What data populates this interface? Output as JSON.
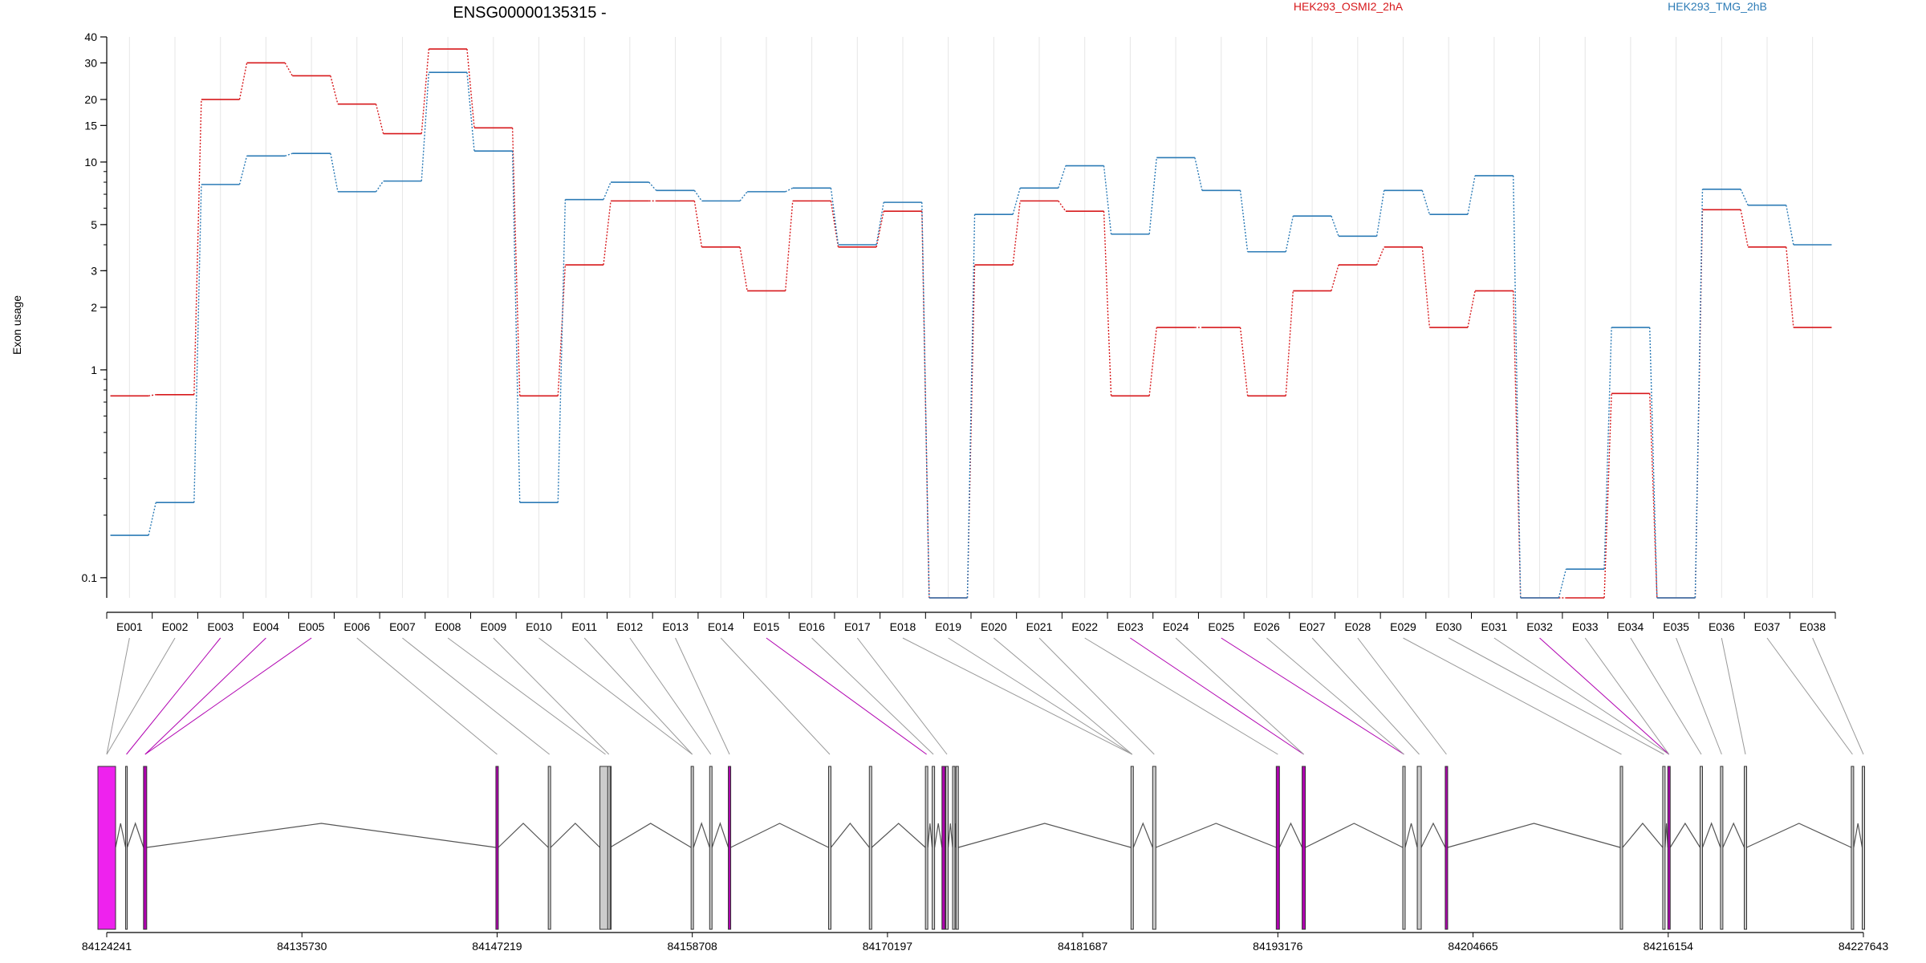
{
  "chart_data": {
    "type": "line",
    "title": "ENSG00000135315 -",
    "ylabel": "Exon usage",
    "yscale": "log",
    "ylim": [
      0.08,
      40
    ],
    "yticks": [
      "0.1",
      "1",
      "2",
      "3",
      "5",
      "10",
      "15",
      "20",
      "30",
      "40"
    ],
    "legend_placement": "top",
    "categories": [
      "E001",
      "E002",
      "E003",
      "E004",
      "E005",
      "E006",
      "E007",
      "E008",
      "E009",
      "E010",
      "E011",
      "E012",
      "E013",
      "E014",
      "E015",
      "E016",
      "E017",
      "E018",
      "E019",
      "E020",
      "E021",
      "E022",
      "E023",
      "E024",
      "E025",
      "E026",
      "E027",
      "E028",
      "E029",
      "E030",
      "E031",
      "E032",
      "E033",
      "E034",
      "E035",
      "E036",
      "E037",
      "E038"
    ],
    "series": [
      {
        "name": "HEK293_OSMI2_2hA",
        "color": "#d7191c",
        "values": [
          0.75,
          0.76,
          20,
          30,
          26,
          19,
          13.7,
          35,
          14.6,
          0.75,
          3.2,
          6.5,
          6.5,
          3.9,
          2.4,
          6.5,
          3.9,
          5.8,
          0.08,
          3.2,
          6.5,
          5.8,
          0.75,
          1.6,
          1.6,
          0.75,
          2.4,
          3.2,
          3.9,
          1.6,
          2.4,
          0.08,
          0.08,
          0.77,
          0.08,
          5.9,
          3.9,
          1.6
        ]
      },
      {
        "name": "HEK293_TMG_2hB",
        "color": "#2c7bb6",
        "values": [
          0.16,
          0.23,
          7.8,
          10.7,
          11,
          7.2,
          8.1,
          27,
          11.3,
          0.23,
          6.6,
          8,
          7.3,
          6.5,
          7.2,
          7.5,
          4,
          6.4,
          0.08,
          5.6,
          7.5,
          9.6,
          4.5,
          10.5,
          7.3,
          3.7,
          5.5,
          4.4,
          7.3,
          5.6,
          8.6,
          0.08,
          0.11,
          1.6,
          0.08,
          7.4,
          6.2,
          4
        ]
      }
    ],
    "gene_model": {
      "start": 84124241,
      "end": 84227643,
      "axis_ticks": [
        "84124241",
        "84135730",
        "84147219",
        "84158708",
        "84170197",
        "84181687",
        "84193176",
        "84204665",
        "84216154",
        "84227643"
      ],
      "exon_positions": [
        84124241,
        84125400,
        84126500,
        84147219,
        84150300,
        84153600,
        84153800,
        84158708,
        84159800,
        84160900,
        84166800,
        84169200,
        84172500,
        84172900,
        84173500,
        84173700,
        84174100,
        84174300,
        84184600,
        84185900,
        84193176,
        84194700,
        84200600,
        84201500,
        84203100,
        84213400,
        84215900,
        84216200,
        84218100,
        84219300,
        84220700,
        84227000,
        84227643
      ],
      "highlighted_exons": [
        "E003",
        "E004",
        "E005",
        "E015",
        "E023",
        "E025",
        "E032"
      ],
      "highlight_color": "#b000b0",
      "first_exon_color": "#ee22ee",
      "exon_color": "#cccccc"
    }
  }
}
